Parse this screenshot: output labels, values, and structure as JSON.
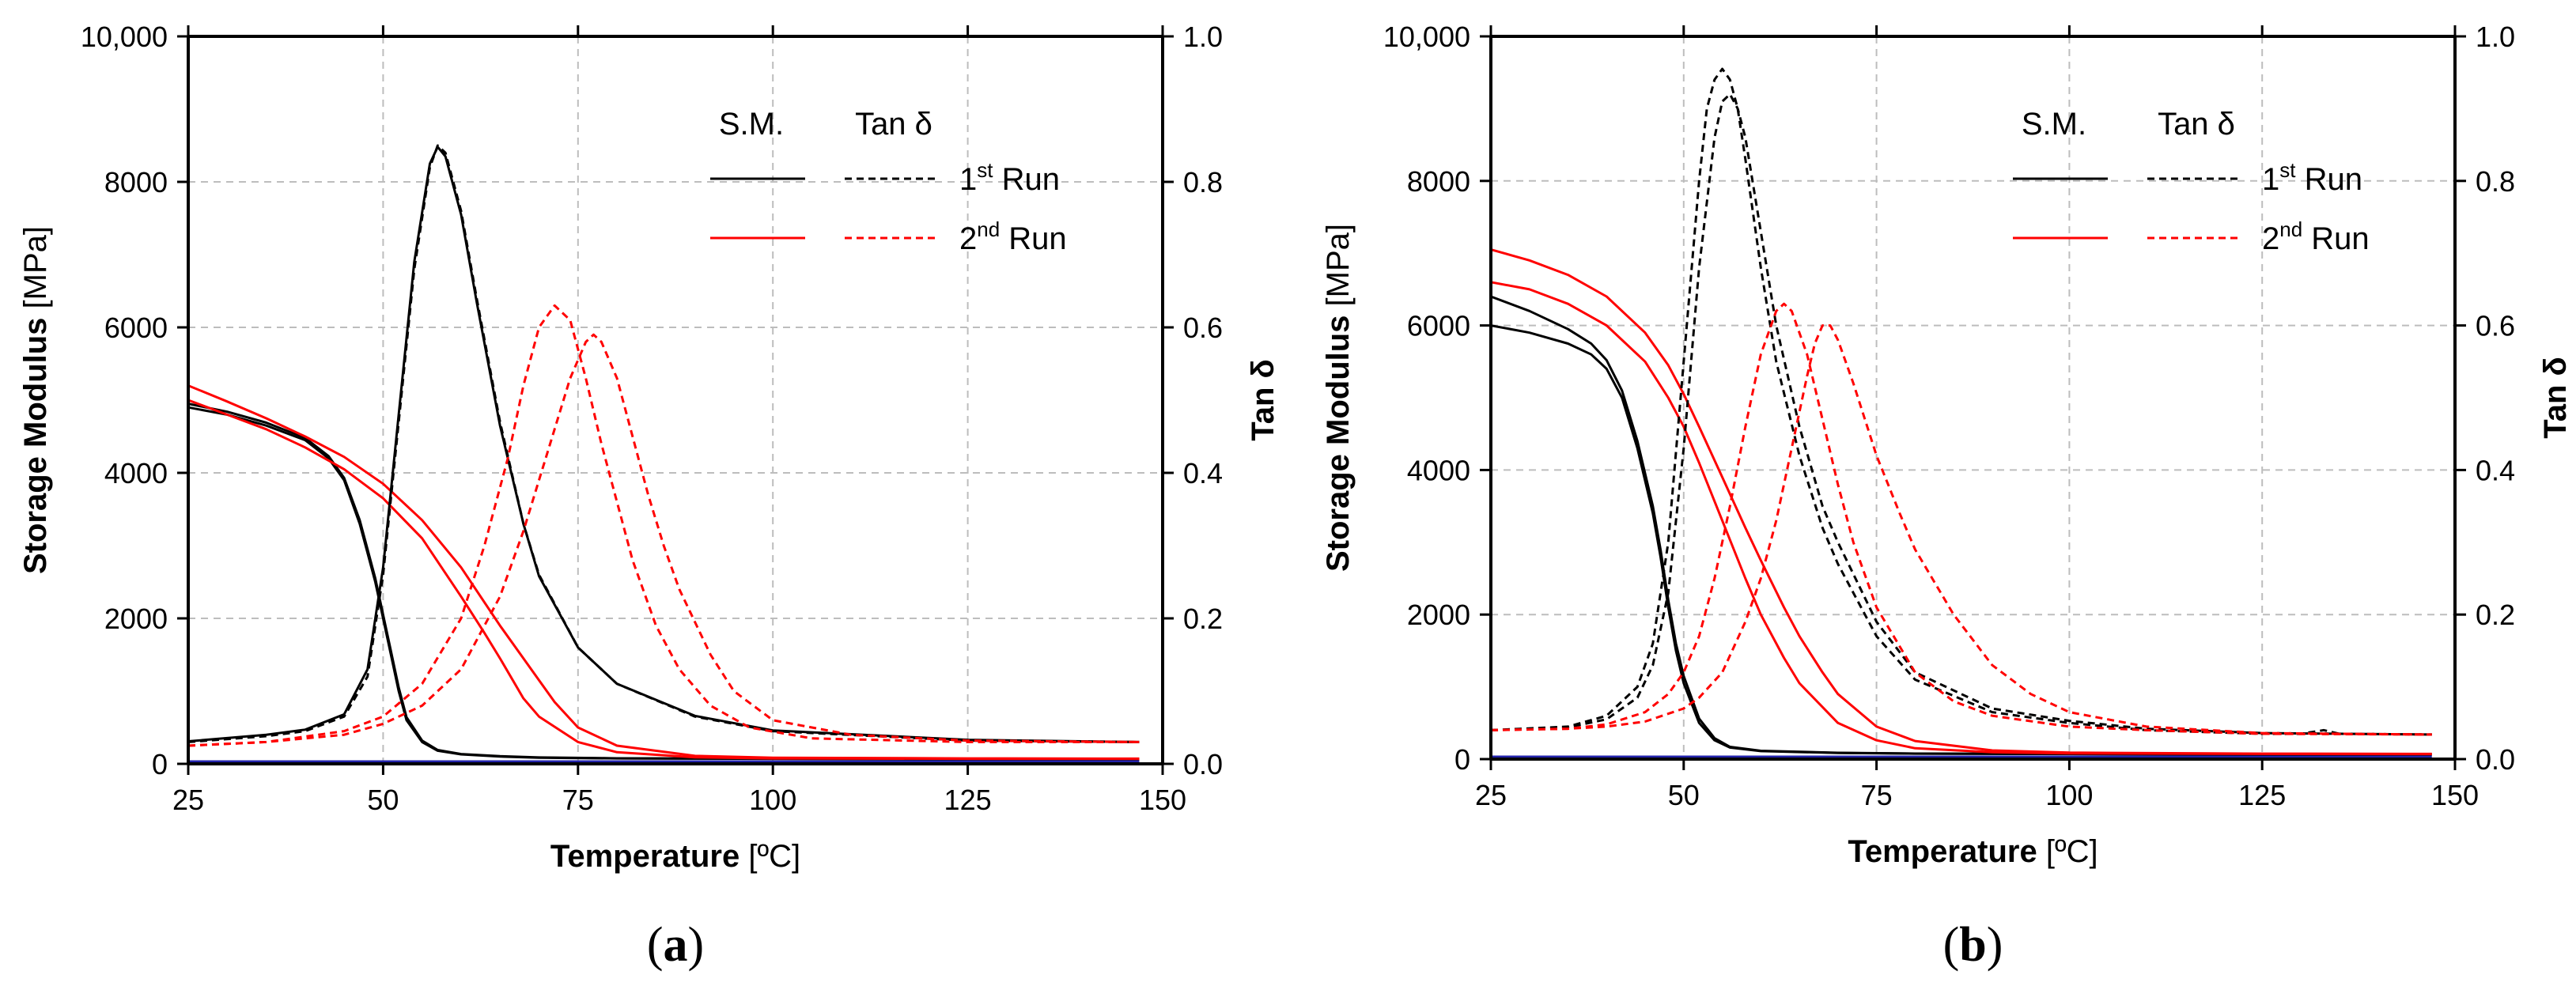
{
  "colors": {
    "run1": "#000000",
    "run2": "#ff0000",
    "grid": "#bdbdbd",
    "baseline": "#2222aa"
  },
  "chart_data": [
    {
      "type": "line",
      "panel_label": "(a)",
      "panel_letter": "a",
      "xlabel": "Temperature",
      "xlabel_unit": "[ºC]",
      "ylabel": "Storage Modulus",
      "ylabel_unit": "[MPa]",
      "y2label": "Tan δ",
      "xlim": [
        25,
        150
      ],
      "ylim": [
        0,
        10000
      ],
      "y2lim": [
        0,
        1.0
      ],
      "xticks": [
        25,
        50,
        75,
        100,
        125,
        150
      ],
      "yticks": [
        0,
        2000,
        4000,
        6000,
        8000,
        10000
      ],
      "ytick_labels": [
        "0",
        "2000",
        "4000",
        "6000",
        "8000",
        "10,000"
      ],
      "y2ticks": [
        0,
        0.2,
        0.4,
        0.6,
        0.8,
        1.0
      ],
      "y2tick_labels": [
        "0.0",
        "0.2",
        "0.4",
        "0.6",
        "0.8",
        "1.0"
      ],
      "grid": true,
      "legend": {
        "col1": "S.M.",
        "col2": "Tan δ",
        "rows": [
          {
            "base": "1",
            "sup": "st",
            "rest": " Run",
            "color": "run1"
          },
          {
            "base": "2",
            "sup": "nd",
            "rest": " Run",
            "color": "run2"
          }
        ],
        "placement": "top-right"
      },
      "series": [
        {
          "name": "S.M. 1st Run (i)",
          "axis": "left",
          "color": "run1",
          "dash": false,
          "x": [
            25,
            30,
            35,
            40,
            43,
            45,
            47,
            48,
            49,
            50,
            51,
            52,
            53,
            55,
            57,
            60,
            65,
            70,
            80,
            100,
            125,
            147
          ],
          "y": [
            4900,
            4800,
            4650,
            4450,
            4200,
            3900,
            3300,
            2900,
            2500,
            2000,
            1500,
            1000,
            600,
            300,
            180,
            130,
            100,
            85,
            75,
            70,
            65,
            65
          ]
        },
        {
          "name": "S.M. 1st Run (ii)",
          "axis": "left",
          "color": "run1",
          "dash": false,
          "x": [
            25,
            30,
            35,
            40,
            43,
            45,
            47,
            48,
            49,
            50,
            51,
            52,
            53,
            55,
            57,
            60,
            65,
            70,
            80,
            100,
            125,
            147
          ],
          "y": [
            4950,
            4840,
            4690,
            4480,
            4230,
            3930,
            3350,
            2950,
            2550,
            2050,
            1550,
            1050,
            640,
            320,
            190,
            135,
            105,
            88,
            76,
            71,
            66,
            66
          ]
        },
        {
          "name": "S.M. 2nd Run (i)",
          "axis": "left",
          "color": "run2",
          "dash": false,
          "x": [
            25,
            30,
            35,
            40,
            45,
            50,
            55,
            60,
            63,
            65,
            68,
            70,
            75,
            80,
            90,
            100,
            125,
            147
          ],
          "y": [
            5000,
            4800,
            4600,
            4350,
            4050,
            3650,
            3100,
            2300,
            1800,
            1450,
            900,
            650,
            300,
            160,
            90,
            75,
            70,
            70
          ]
        },
        {
          "name": "S.M. 2nd Run (ii)",
          "axis": "left",
          "color": "run2",
          "dash": false,
          "x": [
            25,
            30,
            35,
            40,
            45,
            50,
            55,
            60,
            65,
            68,
            70,
            72,
            75,
            80,
            90,
            100,
            125,
            147
          ],
          "y": [
            5200,
            4980,
            4750,
            4500,
            4220,
            3850,
            3350,
            2700,
            1900,
            1450,
            1150,
            850,
            500,
            250,
            110,
            85,
            75,
            72
          ]
        },
        {
          "name": "Tan δ 1st Run (i)",
          "axis": "right",
          "color": "run1",
          "dash": true,
          "x": [
            25,
            35,
            40,
            45,
            48,
            50,
            52,
            54,
            56,
            57,
            58,
            60,
            62,
            65,
            68,
            70,
            75,
            80,
            90,
            100,
            125,
            147
          ],
          "y": [
            0.03,
            0.038,
            0.045,
            0.065,
            0.12,
            0.26,
            0.47,
            0.68,
            0.82,
            0.85,
            0.84,
            0.76,
            0.64,
            0.47,
            0.33,
            0.26,
            0.16,
            0.11,
            0.065,
            0.045,
            0.032,
            0.03
          ]
        },
        {
          "name": "Tan δ 1st Run (ii)",
          "axis": "right",
          "color": "run1",
          "dash": false,
          "x": [
            25,
            35,
            40,
            45,
            48,
            50,
            52,
            54,
            56,
            57,
            58,
            60,
            62,
            65,
            68,
            70,
            75,
            80,
            90,
            100,
            125,
            147
          ],
          "y": [
            0.031,
            0.04,
            0.047,
            0.068,
            0.13,
            0.27,
            0.48,
            0.69,
            0.825,
            0.848,
            0.835,
            0.755,
            0.635,
            0.465,
            0.33,
            0.258,
            0.16,
            0.11,
            0.066,
            0.046,
            0.033,
            0.03
          ]
        },
        {
          "name": "Tan δ 2nd Run (i)",
          "axis": "right",
          "color": "run2",
          "dash": true,
          "x": [
            25,
            35,
            45,
            50,
            55,
            60,
            63,
            66,
            68,
            70,
            72,
            74,
            76,
            78,
            80,
            82,
            85,
            88,
            92,
            97,
            105,
            125,
            147
          ],
          "y": [
            0.025,
            0.03,
            0.045,
            0.065,
            0.11,
            0.2,
            0.3,
            0.42,
            0.52,
            0.6,
            0.63,
            0.61,
            0.53,
            0.44,
            0.36,
            0.28,
            0.19,
            0.13,
            0.08,
            0.05,
            0.035,
            0.03,
            0.03
          ]
        },
        {
          "name": "Tan δ 2nd Run (ii)",
          "axis": "right",
          "color": "run2",
          "dash": true,
          "x": [
            25,
            35,
            45,
            50,
            55,
            60,
            65,
            68,
            70,
            72,
            74,
            76,
            77,
            78,
            80,
            82,
            84,
            86,
            88,
            92,
            95,
            100,
            110,
            125,
            147
          ],
          "y": [
            0.025,
            0.03,
            0.04,
            0.055,
            0.08,
            0.13,
            0.23,
            0.32,
            0.39,
            0.46,
            0.53,
            0.58,
            0.59,
            0.58,
            0.53,
            0.45,
            0.37,
            0.3,
            0.24,
            0.15,
            0.1,
            0.06,
            0.04,
            0.032,
            0.03
          ]
        }
      ]
    },
    {
      "type": "line",
      "panel_label": "(b)",
      "panel_letter": "b",
      "xlabel": "Temperature",
      "xlabel_unit": "[ºC]",
      "ylabel": "Storage Modulus",
      "ylabel_unit": "[MPa]",
      "y2label": "Tan δ",
      "xlim": [
        25,
        150
      ],
      "ylim": [
        0,
        10000
      ],
      "y2lim": [
        0,
        1.0
      ],
      "xticks": [
        25,
        50,
        75,
        100,
        125,
        150
      ],
      "yticks": [
        0,
        2000,
        4000,
        6000,
        8000,
        10000
      ],
      "ytick_labels": [
        "0",
        "2000",
        "4000",
        "6000",
        "8000",
        "10,000"
      ],
      "y2ticks": [
        0,
        0.2,
        0.4,
        0.6,
        0.8,
        1.0
      ],
      "y2tick_labels": [
        "0.0",
        "0.2",
        "0.4",
        "0.6",
        "0.8",
        "1.0"
      ],
      "grid": true,
      "legend": {
        "col1": "S.M.",
        "col2": "Tan δ",
        "rows": [
          {
            "base": "1",
            "sup": "st",
            "rest": " Run",
            "color": "run1"
          },
          {
            "base": "2",
            "sup": "nd",
            "rest": " Run",
            "color": "run2"
          }
        ],
        "placement": "top-right"
      },
      "series": [
        {
          "name": "S.M. 1st Run (i)",
          "axis": "left",
          "color": "run1",
          "dash": false,
          "x": [
            25,
            30,
            35,
            38,
            40,
            42,
            44,
            46,
            47,
            48,
            49,
            50,
            52,
            54,
            56,
            60,
            70,
            80,
            100,
            125,
            147
          ],
          "y": [
            6000,
            5900,
            5750,
            5600,
            5400,
            5000,
            4300,
            3400,
            2800,
            2100,
            1500,
            1050,
            500,
            260,
            160,
            110,
            85,
            75,
            70,
            65,
            65
          ]
        },
        {
          "name": "S.M. 1st Run (ii)",
          "axis": "left",
          "color": "run1",
          "dash": false,
          "x": [
            25,
            30,
            35,
            38,
            40,
            42,
            44,
            46,
            47,
            48,
            49,
            50,
            52,
            54,
            56,
            60,
            70,
            80,
            100,
            125,
            147
          ],
          "y": [
            6400,
            6200,
            5950,
            5750,
            5520,
            5100,
            4400,
            3500,
            2900,
            2200,
            1600,
            1150,
            560,
            290,
            170,
            115,
            88,
            77,
            71,
            66,
            66
          ]
        },
        {
          "name": "S.M. 2nd Run (i)",
          "axis": "left",
          "color": "run2",
          "dash": false,
          "x": [
            25,
            30,
            35,
            40,
            45,
            48,
            50,
            52,
            55,
            58,
            60,
            63,
            65,
            70,
            75,
            80,
            90,
            100,
            125,
            147
          ],
          "y": [
            6600,
            6500,
            6300,
            6000,
            5500,
            5000,
            4600,
            4100,
            3300,
            2500,
            2000,
            1400,
            1050,
            500,
            260,
            150,
            95,
            80,
            72,
            70
          ]
        },
        {
          "name": "S.M. 2nd Run (ii)",
          "axis": "left",
          "color": "run2",
          "dash": false,
          "x": [
            25,
            30,
            35,
            40,
            45,
            48,
            50,
            52,
            55,
            58,
            60,
            63,
            65,
            68,
            70,
            75,
            80,
            90,
            100,
            125,
            147
          ],
          "y": [
            7050,
            6900,
            6700,
            6400,
            5900,
            5450,
            5050,
            4600,
            3900,
            3200,
            2750,
            2100,
            1700,
            1200,
            900,
            450,
            250,
            120,
            90,
            75,
            72
          ]
        },
        {
          "name": "Tan δ 1st Run (i)",
          "axis": "right",
          "color": "run1",
          "dash": true,
          "x": [
            25,
            35,
            40,
            44,
            46,
            48,
            50,
            52,
            53,
            54,
            55,
            56,
            57,
            58,
            60,
            62,
            65,
            68,
            70,
            75,
            80,
            90,
            100,
            110,
            125,
            130,
            133,
            135,
            147
          ],
          "y": [
            0.04,
            0.045,
            0.06,
            0.1,
            0.16,
            0.3,
            0.55,
            0.8,
            0.9,
            0.94,
            0.955,
            0.94,
            0.9,
            0.83,
            0.68,
            0.55,
            0.42,
            0.32,
            0.27,
            0.17,
            0.11,
            0.065,
            0.05,
            0.04,
            0.035,
            0.035,
            0.04,
            0.035,
            0.034
          ]
        },
        {
          "name": "Tan δ 1st Run (ii)",
          "axis": "right",
          "color": "run1",
          "dash": true,
          "x": [
            25,
            35,
            40,
            44,
            46,
            48,
            50,
            52,
            54,
            55,
            56,
            57,
            58,
            60,
            62,
            65,
            68,
            70,
            75,
            80,
            90,
            100,
            110,
            125,
            147
          ],
          "y": [
            0.04,
            0.044,
            0.055,
            0.085,
            0.13,
            0.23,
            0.43,
            0.68,
            0.86,
            0.91,
            0.92,
            0.9,
            0.86,
            0.73,
            0.6,
            0.46,
            0.35,
            0.3,
            0.19,
            0.12,
            0.07,
            0.053,
            0.042,
            0.036,
            0.034
          ]
        },
        {
          "name": "Tan δ 2nd Run (i)",
          "axis": "right",
          "color": "run2",
          "dash": true,
          "x": [
            25,
            35,
            40,
            45,
            48,
            50,
            52,
            54,
            56,
            58,
            60,
            62,
            63,
            64,
            66,
            68,
            70,
            72,
            75,
            80,
            85,
            90,
            100,
            110,
            125,
            147
          ],
          "y": [
            0.04,
            0.042,
            0.048,
            0.065,
            0.09,
            0.12,
            0.17,
            0.25,
            0.35,
            0.46,
            0.56,
            0.62,
            0.63,
            0.62,
            0.56,
            0.47,
            0.38,
            0.3,
            0.21,
            0.12,
            0.08,
            0.06,
            0.045,
            0.04,
            0.035,
            0.034
          ]
        },
        {
          "name": "Tan δ 2nd Run (ii)",
          "axis": "right",
          "color": "run2",
          "dash": true,
          "x": [
            25,
            35,
            40,
            45,
            50,
            52,
            55,
            58,
            60,
            62,
            64,
            66,
            67,
            68,
            69,
            70,
            72,
            75,
            78,
            80,
            85,
            90,
            95,
            100,
            110,
            125,
            147
          ],
          "y": [
            0.04,
            0.042,
            0.045,
            0.052,
            0.07,
            0.085,
            0.12,
            0.19,
            0.25,
            0.33,
            0.43,
            0.53,
            0.575,
            0.6,
            0.6,
            0.58,
            0.52,
            0.42,
            0.34,
            0.29,
            0.2,
            0.13,
            0.09,
            0.065,
            0.045,
            0.036,
            0.034
          ]
        }
      ]
    }
  ]
}
